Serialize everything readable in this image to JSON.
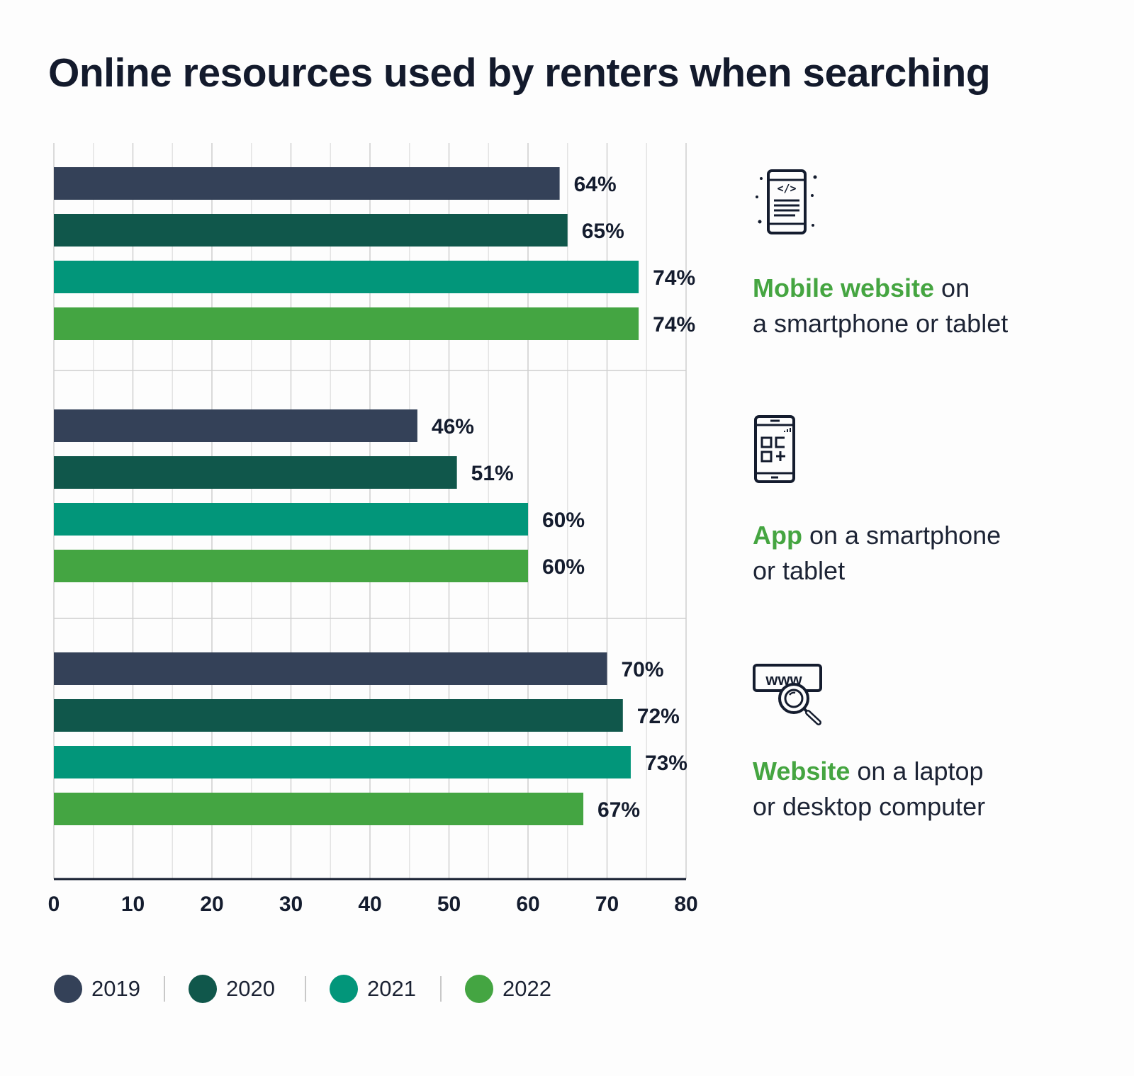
{
  "title": "Online resources used by renters when searching",
  "categories": [
    {
      "icon": "mobile-website-icon",
      "label_highlight": "Mobile website",
      "label_rest_line1": " on",
      "label_line2": "a smartphone or tablet"
    },
    {
      "icon": "mobile-app-icon",
      "label_highlight": "App",
      "label_rest_line1": " on a smartphone",
      "label_line2": "or tablet"
    },
    {
      "icon": "www-search-icon",
      "label_highlight": "Website",
      "label_rest_line1": " on a laptop",
      "label_line2": "or desktop computer"
    }
  ],
  "colors": {
    "2019": "#344158",
    "2020": "#10574b",
    "2021": "#02967a",
    "2022": "#44a542",
    "highlight": "#45a541"
  },
  "chart_data": {
    "type": "bar",
    "orientation": "horizontal",
    "categories": [
      "Mobile website on a smartphone or tablet",
      "App on a smartphone or tablet",
      "Website on a laptop or desktop computer"
    ],
    "series": [
      {
        "name": "2019",
        "values": [
          64,
          46,
          70
        ],
        "labels": [
          "64%",
          "46%",
          "70%"
        ]
      },
      {
        "name": "2020",
        "values": [
          65,
          51,
          72
        ],
        "labels": [
          "65%",
          "51%",
          "72%"
        ]
      },
      {
        "name": "2021",
        "values": [
          74,
          60,
          73
        ],
        "labels": [
          "74%",
          "60%",
          "73%"
        ]
      },
      {
        "name": "2022",
        "values": [
          74,
          60,
          67
        ],
        "labels": [
          "74%",
          "60%",
          "67%"
        ]
      }
    ],
    "xlim": [
      0,
      80
    ],
    "xticks": [
      "0",
      "10",
      "20",
      "30",
      "40",
      "50",
      "60",
      "70",
      "80"
    ],
    "grid": true,
    "legend": "bottom"
  }
}
